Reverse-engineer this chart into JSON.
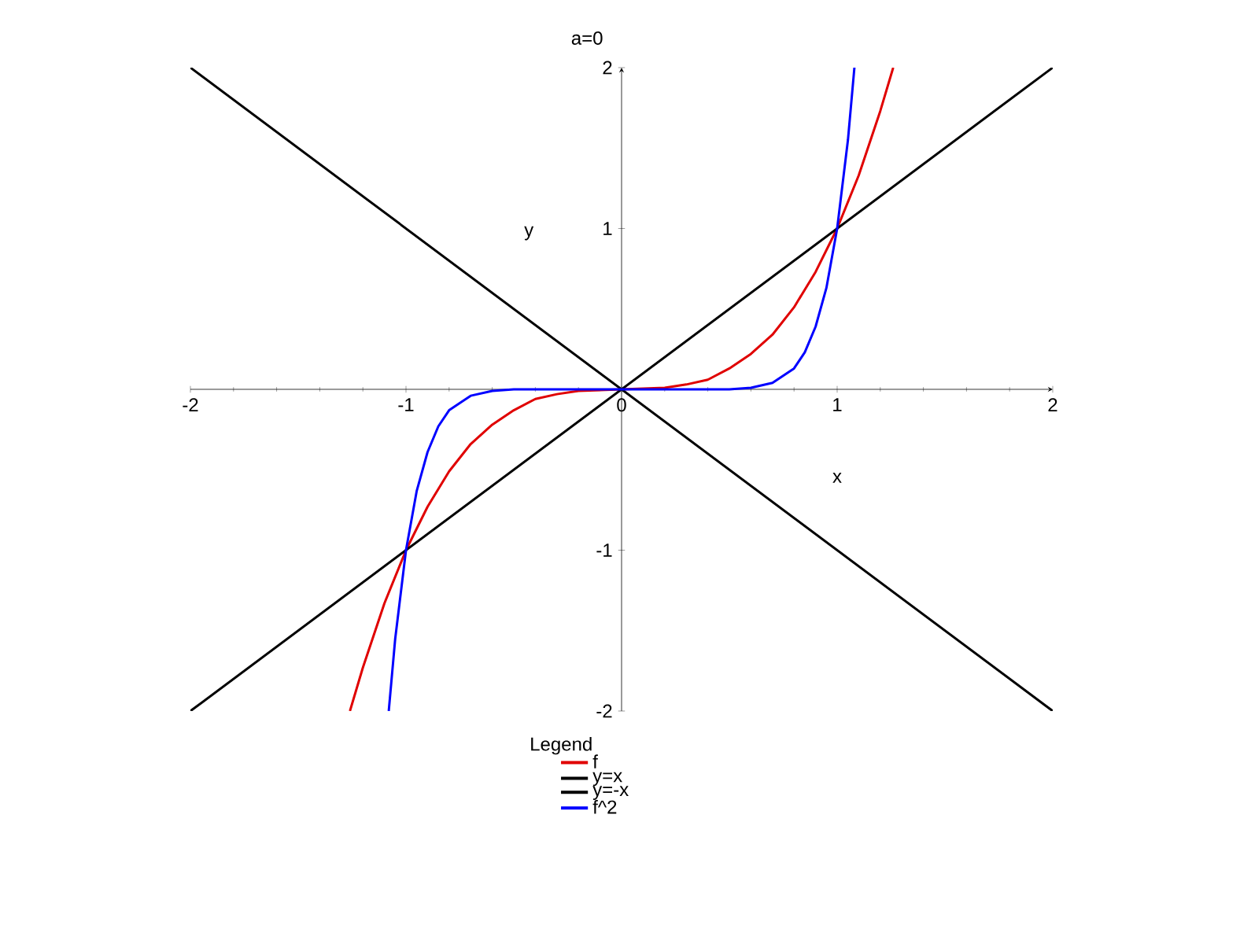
{
  "chart_data": {
    "type": "line",
    "title": "a=0",
    "xlabel": "x",
    "ylabel": "y",
    "legend_title": "Legend",
    "legend": "bottom",
    "xlim": [
      -2,
      2
    ],
    "ylim": [
      -2,
      2
    ],
    "xticks": [
      -2,
      -1,
      0,
      1,
      2
    ],
    "yticks": [
      -2,
      -1,
      1,
      2
    ],
    "series": [
      {
        "name": "f",
        "color": "#e00000",
        "x": [
          -1.26,
          -1.2,
          -1.1,
          -1,
          -0.9,
          -0.8,
          -0.7,
          -0.6,
          -0.5,
          -0.4,
          -0.3,
          -0.2,
          0,
          0.2,
          0.3,
          0.4,
          0.5,
          0.6,
          0.7,
          0.8,
          0.9,
          1,
          1.1,
          1.2,
          1.26
        ],
        "values": [
          -2,
          -1.73,
          -1.33,
          -1,
          -0.73,
          -0.51,
          -0.34,
          -0.22,
          -0.13,
          -0.06,
          -0.03,
          -0.01,
          0,
          0.01,
          0.03,
          0.06,
          0.13,
          0.22,
          0.34,
          0.51,
          0.73,
          1,
          1.33,
          1.73,
          2
        ]
      },
      {
        "name": "y=x",
        "color": "#000000",
        "x": [
          -2,
          2
        ],
        "values": [
          -2,
          2
        ]
      },
      {
        "name": "y=-x",
        "color": "#000000",
        "x": [
          -2,
          2
        ],
        "values": [
          2,
          -2
        ]
      },
      {
        "name": "f^2",
        "color": "#0000ff",
        "x": [
          -1.08,
          -1.05,
          -1,
          -0.95,
          -0.9,
          -0.85,
          -0.8,
          -0.7,
          -0.6,
          -0.5,
          0,
          0.5,
          0.6,
          0.7,
          0.8,
          0.85,
          0.9,
          0.95,
          1,
          1.05,
          1.08
        ],
        "values": [
          -2,
          -1.55,
          -1,
          -0.63,
          -0.39,
          -0.23,
          -0.13,
          -0.04,
          -0.01,
          0,
          0,
          0,
          0.01,
          0.04,
          0.13,
          0.23,
          0.39,
          0.63,
          1,
          1.55,
          2
        ]
      }
    ]
  }
}
